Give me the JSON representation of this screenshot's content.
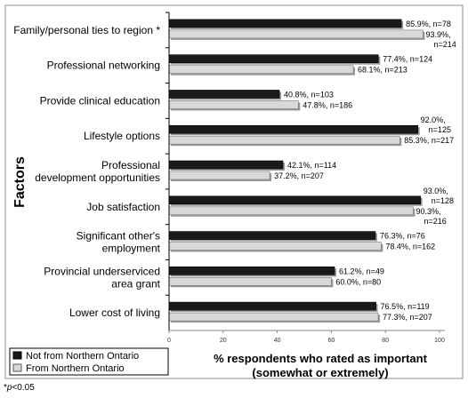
{
  "chart_data": {
    "type": "bar",
    "orientation": "horizontal",
    "ylabel": "Factors",
    "xlabel_line1": "% respondents who rated as important",
    "xlabel_line2": "(somewhat or extremely)",
    "xlim": [
      0,
      100
    ],
    "xticks": [
      "0",
      "20",
      "40",
      "60",
      "80",
      "100"
    ],
    "categories": [
      [
        "Family/personal ties to region *"
      ],
      [
        "Professional networking"
      ],
      [
        "Provide clinical education"
      ],
      [
        "Lifestyle options"
      ],
      [
        "Professional",
        "development opportunities"
      ],
      [
        "Job satisfaction"
      ],
      [
        "Significant other's",
        "employment"
      ],
      [
        "Provincial underserviced",
        "area grant"
      ],
      [
        "Lower cost of living"
      ]
    ],
    "series": [
      {
        "name": "Not from Northern Ontario",
        "color": "#1a1a1a",
        "values": [
          85.9,
          77.4,
          40.8,
          92.0,
          42.1,
          93.0,
          76.3,
          61.2,
          76.5
        ],
        "labels": [
          [
            "85.9%, n=78"
          ],
          [
            "77.4%, n=124"
          ],
          [
            "40.8%, n=103"
          ],
          [
            "92.0%,",
            "n=125"
          ],
          [
            "42.1%, n=114"
          ],
          [
            "93.0%,",
            "n=128"
          ],
          [
            "76.3%, n=76"
          ],
          [
            "61.2%, n=49"
          ],
          [
            "76.5%, n=119"
          ]
        ]
      },
      {
        "name": "From Northern Ontario",
        "color": "#d9d9d9",
        "values": [
          93.9,
          68.1,
          47.8,
          85.3,
          37.2,
          90.3,
          78.4,
          60.0,
          77.3
        ],
        "labels": [
          [
            "93.9%,",
            "n=214"
          ],
          [
            "68.1%, n=213"
          ],
          [
            "47.8%, n=186"
          ],
          [
            "85.3%, n=217"
          ],
          [
            "37.2%, n=207"
          ],
          [
            "90.3%,",
            "n=216"
          ],
          [
            "78.4%, n=162"
          ],
          [
            "60.0%, n=80"
          ],
          [
            "77.3%, n=207"
          ]
        ]
      }
    ],
    "legend_position": "bottom-left",
    "grid": false
  },
  "footnote": {
    "symbol": "*",
    "p": "p",
    "text": "<0.05"
  }
}
